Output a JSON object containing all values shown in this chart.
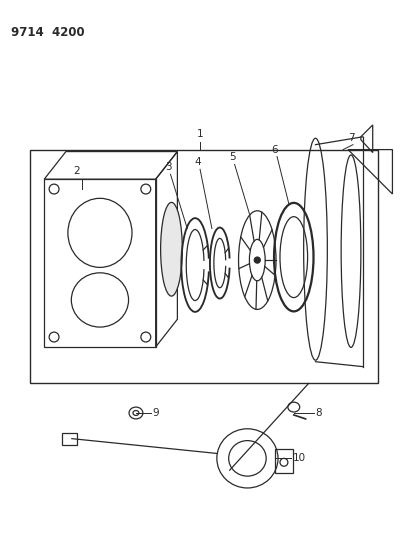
{
  "title": "9714 4200",
  "bg_color": "#ffffff",
  "line_color": "#2a2a2a",
  "fig_width": 4.11,
  "fig_height": 5.33,
  "dpi": 100
}
